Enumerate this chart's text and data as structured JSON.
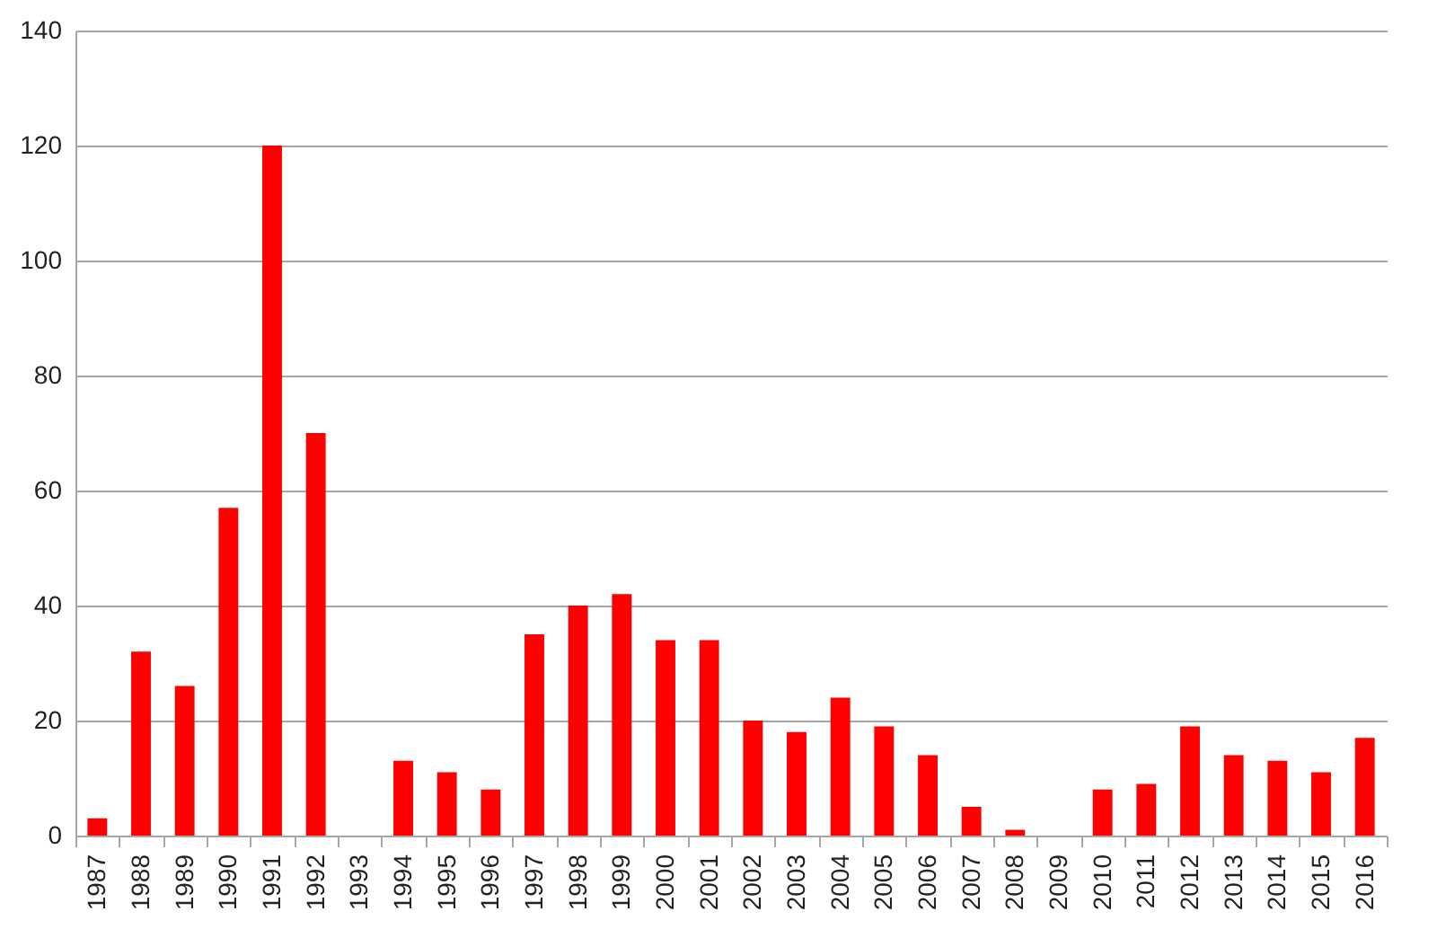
{
  "chart_data": {
    "type": "bar",
    "categories": [
      "1987",
      "1988",
      "1989",
      "1990",
      "1991",
      "1992",
      "1993",
      "1994",
      "1995",
      "1996",
      "1997",
      "1998",
      "1999",
      "2000",
      "2001",
      "2002",
      "2003",
      "2004",
      "2005",
      "2006",
      "2007",
      "2008",
      "2009",
      "2010",
      "2011",
      "2012",
      "2013",
      "2014",
      "2015",
      "2016"
    ],
    "values": [
      3,
      32,
      26,
      57,
      120,
      70,
      0,
      13,
      11,
      8,
      35,
      40,
      42,
      34,
      34,
      20,
      18,
      24,
      19,
      14,
      5,
      1,
      0,
      8,
      9,
      19,
      14,
      13,
      11,
      17
    ],
    "color": "#ff0000",
    "ylim": [
      0,
      140
    ],
    "yticks": [
      0,
      20,
      40,
      60,
      80,
      100,
      120,
      140
    ],
    "grid": "y"
  }
}
